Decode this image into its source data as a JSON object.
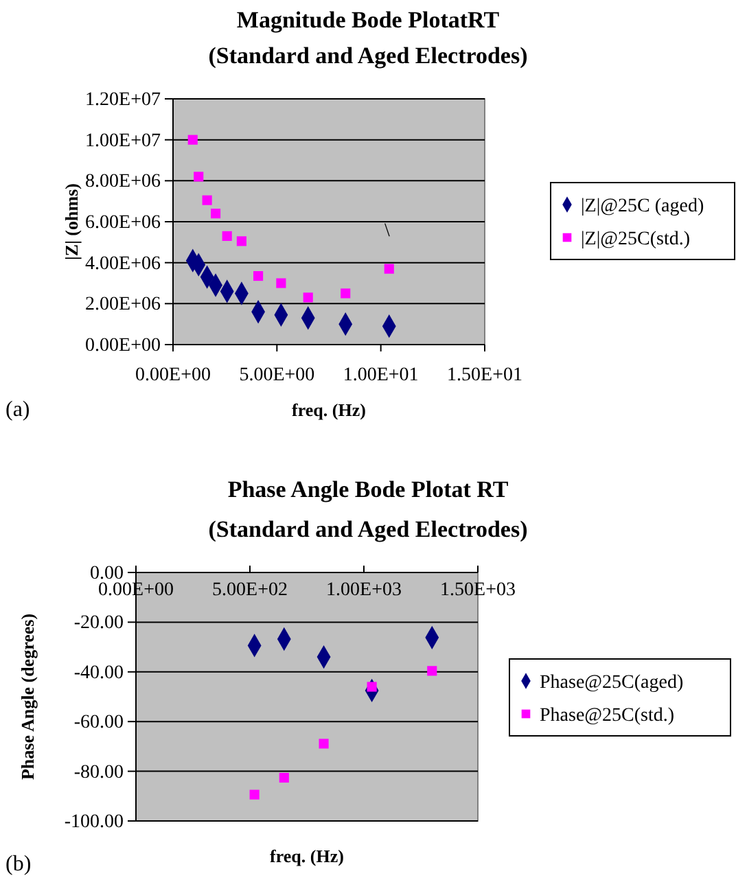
{
  "chart_data": [
    {
      "type": "scatter",
      "title": "Magnitude Bode PlotatRT",
      "subtitle": "(Standard and Aged Electrodes)",
      "xlabel": "freq. (Hz)",
      "ylabel": "|Z| (ohms)",
      "xlim": [
        0,
        15
      ],
      "xticks": [
        {
          "value": 0,
          "label": "0.00E+00"
        },
        {
          "value": 5,
          "label": "5.00E+00"
        },
        {
          "value": 10,
          "label": "1.00E+01"
        },
        {
          "value": 15,
          "label": "1.50E+01"
        }
      ],
      "ylim": [
        0,
        12000000
      ],
      "yticks": [
        {
          "value": 0,
          "label": "0.00E+00"
        },
        {
          "value": 2000000,
          "label": "2.00E+06"
        },
        {
          "value": 4000000,
          "label": "4.00E+06"
        },
        {
          "value": 6000000,
          "label": "6.00E+06"
        },
        {
          "value": 8000000,
          "label": "8.00E+06"
        },
        {
          "value": 10000000,
          "label": "1.00E+07"
        },
        {
          "value": 12000000,
          "label": "1.20E+07"
        }
      ],
      "grid": "y",
      "legend": "right",
      "series": [
        {
          "name": "|Z|@25C (aged)",
          "color": "#000080",
          "marker": "diamond",
          "x": [
            0.95,
            1.23,
            1.64,
            2.05,
            2.6,
            3.3,
            4.1,
            5.2,
            6.5,
            8.3,
            10.4
          ],
          "values": [
            4100000,
            3900000,
            3300000,
            2900000,
            2600000,
            2500000,
            1600000,
            1450000,
            1300000,
            1000000,
            900000
          ]
        },
        {
          "name": "|Z|@25C(std.)",
          "color": "#ff00ff",
          "marker": "square",
          "x": [
            0.95,
            1.23,
            1.64,
            2.05,
            2.6,
            3.3,
            4.1,
            5.2,
            6.5,
            8.3,
            10.4
          ],
          "values": [
            10000000,
            8200000,
            7050000,
            6400000,
            5300000,
            5050000,
            3350000,
            3000000,
            2300000,
            2500000,
            3700000
          ]
        }
      ],
      "annotations": [
        "(a)",
        "\\"
      ]
    },
    {
      "type": "scatter",
      "title": "Phase Angle Bode Plotat RT",
      "subtitle": "(Standard and Aged Electrodes)",
      "xlabel": "freq. (Hz)",
      "ylabel": "Phase Angle (degrees)",
      "xlim": [
        0,
        1500
      ],
      "xticks": [
        {
          "value": 0,
          "label": "0.00E+00"
        },
        {
          "value": 500,
          "label": "5.00E+02"
        },
        {
          "value": 1000,
          "label": "1.00E+03"
        },
        {
          "value": 1500,
          "label": "1.50E+03"
        }
      ],
      "ylim": [
        -100,
        0
      ],
      "yticks": [
        {
          "value": -100,
          "label": "-100.00"
        },
        {
          "value": -80,
          "label": "-80.00"
        },
        {
          "value": -60,
          "label": "-60.00"
        },
        {
          "value": -40,
          "label": "-40.00"
        },
        {
          "value": -20,
          "label": "-20.00"
        },
        {
          "value": 0,
          "label": "0.00"
        }
      ],
      "grid": "y",
      "legend": "right",
      "series": [
        {
          "name": "Phase@25C(aged)",
          "color": "#000080",
          "marker": "diamond",
          "x": [
            520,
            650,
            824,
            1035,
            1299
          ],
          "values": [
            -29.4,
            -26.8,
            -34,
            -47.5,
            -26.2
          ]
        },
        {
          "name": "Phase@25C(std.)",
          "color": "#ff00ff",
          "marker": "square",
          "x": [
            520,
            650,
            824,
            1035,
            1299
          ],
          "values": [
            -89.4,
            -82.6,
            -68.9,
            -46,
            -39.6
          ]
        }
      ],
      "annotations": [
        "(b)"
      ]
    }
  ]
}
